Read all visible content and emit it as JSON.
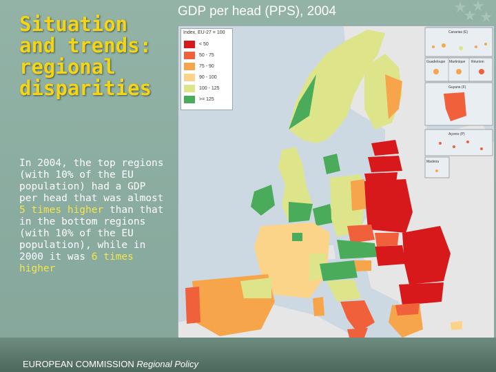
{
  "slide": {
    "title_lines": [
      "Situation",
      "and trends:",
      "regional",
      "disparities"
    ],
    "body": {
      "part1": "In 2004, the top regions (with 10% of the EU population) had a GDP per head that was almost ",
      "hl1": "5 times higher",
      "part2": " than that in the bottom regions (with 10% of the EU population), while in 2000 it was ",
      "hl2": "6 times higher",
      "part3": ""
    },
    "footer": {
      "main": "EUROPEAN COMMISSION",
      "sub": "Regional Policy"
    }
  },
  "map": {
    "title": "GDP per head (PPS), 2004",
    "legend": {
      "heading": "Index, EU-27 = 100",
      "classes": [
        {
          "label": "< 50",
          "color": "#d7191c"
        },
        {
          "label": "50 - 75",
          "color": "#f0603a"
        },
        {
          "label": "75 - 90",
          "color": "#f7a54a"
        },
        {
          "label": "90 - 100",
          "color": "#fbd48a"
        },
        {
          "label": "100 - 125",
          "color": "#dde48a"
        },
        {
          "label": ">= 125",
          "color": "#4aab5b"
        }
      ]
    },
    "insets": [
      "Canarias (E)",
      "Guadeloupe",
      "Martinique",
      "Réunion",
      "Guyane (F)",
      "Açores (P)",
      "Madeira"
    ],
    "colors": {
      "sea": "#cdd9e2",
      "non_eu_land": "#e8e8e8"
    }
  }
}
